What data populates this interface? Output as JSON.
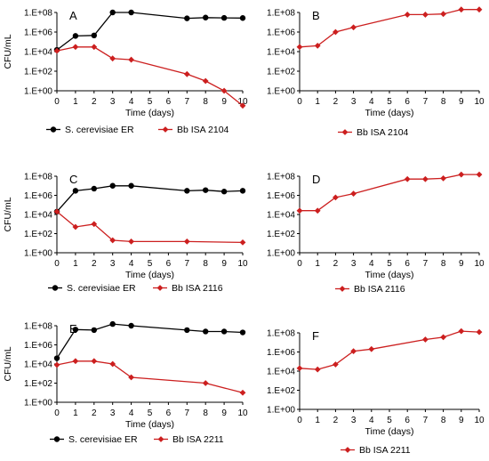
{
  "axis_text": {
    "ylabel": "CFU/mL",
    "xlabel": "Time (days)",
    "y_ticks": [
      "1.E+00",
      "1.E+02",
      "1.E+04",
      "1.E+06",
      "1.E+08"
    ],
    "x_ticks": [
      "0",
      "1",
      "2",
      "3",
      "4",
      "5",
      "6",
      "7",
      "8",
      "9",
      "10"
    ]
  },
  "colors": {
    "yeast": "#000000",
    "bb": "#cc1f1f"
  },
  "chart_data": [
    {
      "type": "line",
      "panel_label": "A",
      "xlabel": "Time (days)",
      "ylabel": "CFU/mL",
      "y_scale": "log",
      "ylim": [
        1,
        100000000
      ],
      "xlim": [
        0,
        10
      ],
      "grid": false,
      "legend": "bottom",
      "series": [
        {
          "name": "S. cerevisiae ER",
          "color": "#000000",
          "marker": "circle",
          "x": [
            0,
            1,
            2,
            3,
            4,
            7,
            8,
            9,
            10
          ],
          "y": [
            15000,
            400000,
            450000,
            100000000,
            100000000,
            25000000,
            30000000,
            28000000,
            27000000
          ]
        },
        {
          "name": "Bb ISA 2104",
          "color": "#cc1f1f",
          "marker": "diamond",
          "x": [
            0,
            1,
            2,
            3,
            4,
            7,
            8,
            9,
            10
          ],
          "y": [
            12000,
            30000,
            30000,
            2000,
            1500,
            50,
            10,
            1,
            0.03
          ]
        }
      ]
    },
    {
      "type": "line",
      "panel_label": "B",
      "xlabel": "Time (days)",
      "y_scale": "log",
      "ylim": [
        1,
        100000000
      ],
      "xlim": [
        0,
        10
      ],
      "grid": false,
      "legend": "bottom",
      "series": [
        {
          "name": "Bb ISA 2104",
          "color": "#cc1f1f",
          "marker": "diamond",
          "x": [
            0,
            1,
            2,
            3,
            6,
            7,
            8,
            9,
            10
          ],
          "y": [
            30000,
            40000,
            1000000,
            3000000,
            60000000,
            60000000,
            70000000,
            200000000,
            200000000
          ]
        }
      ]
    },
    {
      "type": "line",
      "panel_label": "C",
      "xlabel": "Time (days)",
      "ylabel": "CFU/mL",
      "y_scale": "log",
      "ylim": [
        1,
        100000000
      ],
      "xlim": [
        0,
        10
      ],
      "grid": false,
      "legend": "bottom",
      "series": [
        {
          "name": "S. cerevisiae ER",
          "color": "#000000",
          "marker": "circle",
          "x": [
            0,
            1,
            2,
            3,
            4,
            7,
            8,
            9,
            10
          ],
          "y": [
            20000,
            3000000,
            5000000,
            10000000,
            10000000,
            3000000,
            3500000,
            2500000,
            3000000
          ]
        },
        {
          "name": "Bb ISA 2116",
          "color": "#cc1f1f",
          "marker": "diamond",
          "x": [
            0,
            1,
            2,
            3,
            4,
            7,
            10
          ],
          "y": [
            20000,
            500,
            1000,
            20,
            15,
            15,
            12
          ]
        }
      ]
    },
    {
      "type": "line",
      "panel_label": "D",
      "xlabel": "Time (days)",
      "y_scale": "log",
      "ylim": [
        1,
        100000000
      ],
      "xlim": [
        0,
        10
      ],
      "grid": false,
      "legend": "bottom",
      "series": [
        {
          "name": "Bb ISA 2116",
          "color": "#cc1f1f",
          "marker": "diamond",
          "x": [
            0,
            1,
            2,
            3,
            6,
            7,
            8,
            9,
            10
          ],
          "y": [
            25000,
            25000,
            600000,
            1500000,
            50000000,
            50000000,
            60000000,
            150000000,
            150000000
          ]
        }
      ]
    },
    {
      "type": "line",
      "panel_label": "E",
      "xlabel": "Time (days)",
      "ylabel": "CFU/mL",
      "y_scale": "log",
      "ylim": [
        1,
        100000000
      ],
      "xlim": [
        0,
        10
      ],
      "grid": false,
      "legend": "bottom",
      "series": [
        {
          "name": "S. cerevisiae ER",
          "color": "#000000",
          "marker": "circle",
          "x": [
            0,
            1,
            2,
            3,
            4,
            7,
            8,
            9,
            10
          ],
          "y": [
            40000,
            40000000,
            35000000,
            150000000,
            100000000,
            35000000,
            25000000,
            25000000,
            20000000
          ]
        },
        {
          "name": "Bb ISA 2211",
          "color": "#cc1f1f",
          "marker": "diamond",
          "x": [
            0,
            1,
            2,
            3,
            4,
            8,
            10
          ],
          "y": [
            8000,
            20000,
            20000,
            10000,
            400,
            100,
            10
          ]
        }
      ]
    },
    {
      "type": "line",
      "panel_label": "F",
      "xlabel": "Time (days)",
      "y_scale": "log",
      "ylim": [
        1,
        100000000
      ],
      "xlim": [
        0,
        10
      ],
      "grid": false,
      "legend": "bottom",
      "series": [
        {
          "name": "Bb ISA 2211",
          "color": "#cc1f1f",
          "marker": "diamond",
          "x": [
            0,
            1,
            2,
            3,
            4,
            7,
            8,
            9,
            10
          ],
          "y": [
            20000,
            15000,
            50000,
            1200000,
            2000000,
            20000000,
            35000000,
            150000000,
            120000000
          ]
        }
      ]
    }
  ]
}
